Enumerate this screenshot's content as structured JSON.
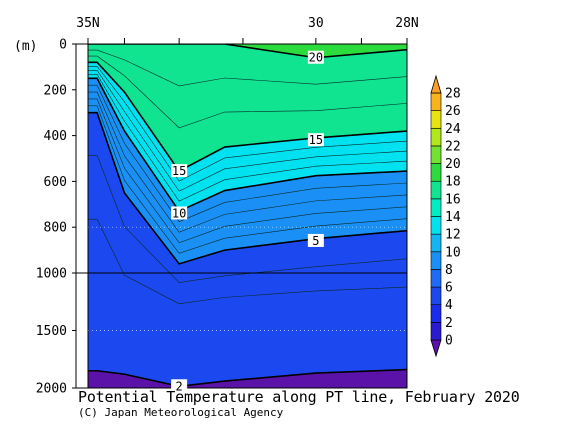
{
  "chart_data": {
    "type": "heatmap",
    "title": "Potential Temperature along PT line, February 2020",
    "credit": "(C) Japan Meteorological Agency",
    "ylabel": "(m)",
    "x_ticks": [
      "35N",
      "30",
      "28N"
    ],
    "x_tick_lat": [
      35,
      30,
      28
    ],
    "xlim": [
      35,
      28
    ],
    "y_ticks": [
      "0",
      "200",
      "400",
      "600",
      "800",
      "1000",
      "1500",
      "2000"
    ],
    "y_tick_depth": [
      0,
      200,
      400,
      600,
      800,
      1000,
      1500,
      2000
    ],
    "ylim": [
      0,
      2000
    ],
    "y_scale": "piecewise-linear, compressed below 1000 m",
    "colorbar": {
      "levels": [
        "0",
        "2",
        "4",
        "6",
        "8",
        "10",
        "12",
        "14",
        "16",
        "18",
        "20",
        "22",
        "24",
        "26",
        "28"
      ],
      "colors": [
        "#5a12a8",
        "#2a1ad2",
        "#1a2cee",
        "#1c48f0",
        "#1e6cf6",
        "#1a90f6",
        "#12b6f2",
        "#00e2f0",
        "#00eec2",
        "#10e490",
        "#2cdc3c",
        "#74e230",
        "#b0e81a",
        "#e8e410",
        "#f8b41a",
        "#f8a028"
      ]
    },
    "contour_labels": [
      "20",
      "15",
      "15",
      "10",
      "5",
      "2"
    ],
    "contour_label_positions": [
      {
        "label": "20",
        "lat": 30.0,
        "depth": 60
      },
      {
        "label": "15",
        "lat": 30.0,
        "depth": 420
      },
      {
        "label": "15",
        "lat": 33.0,
        "depth": 555
      },
      {
        "label": "10",
        "lat": 33.0,
        "depth": 740
      },
      {
        "label": "5",
        "lat": 30.0,
        "depth": 860
      },
      {
        "label": "2",
        "lat": 33.0,
        "depth": 1985
      }
    ],
    "isotherm_depths": {
      "lat": [
        34.8,
        34.2,
        33.0,
        32.0,
        30.0,
        28.0
      ],
      "t20": [
        0,
        0,
        0,
        0,
        60,
        25
      ],
      "t15": [
        80,
        210,
        555,
        450,
        410,
        380
      ],
      "t10": [
        150,
        380,
        730,
        640,
        575,
        555
      ],
      "t5": [
        300,
        650,
        960,
        900,
        850,
        815
      ],
      "t2": [
        1850,
        1880,
        1985,
        1940,
        1870,
        1840
      ]
    }
  }
}
